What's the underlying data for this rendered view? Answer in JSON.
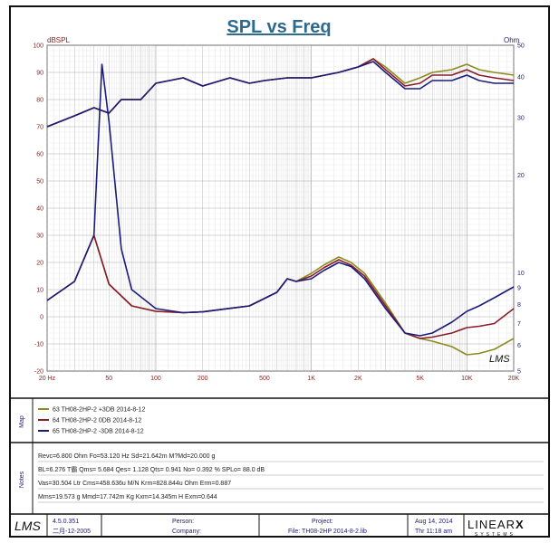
{
  "title": "SPL vs Freq",
  "chart_data": {
    "type": "line",
    "title": "SPL vs Freq",
    "x_axis": {
      "scale": "log",
      "range": [
        20,
        20000
      ],
      "tick_labels": [
        {
          "v": 20,
          "t": "20 Hz"
        },
        {
          "v": 50,
          "t": "50"
        },
        {
          "v": 100,
          "t": "100"
        },
        {
          "v": 200,
          "t": "200"
        },
        {
          "v": 500,
          "t": "500"
        },
        {
          "v": 1000,
          "t": "1K"
        },
        {
          "v": 2000,
          "t": "2K"
        },
        {
          "v": 5000,
          "t": "5K"
        },
        {
          "v": 10000,
          "t": "10K"
        },
        {
          "v": 20000,
          "t": "20K"
        }
      ]
    },
    "y_left": {
      "label": "dBSPL",
      "range": [
        -20,
        100
      ],
      "ticks": [
        -20,
        -10,
        0,
        10,
        20,
        30,
        40,
        50,
        60,
        70,
        80,
        90,
        100
      ]
    },
    "y_right": {
      "label": "Ohm",
      "scale": "log",
      "range": [
        5,
        50
      ],
      "ticks": [
        5,
        6,
        7,
        8,
        9,
        10,
        20,
        30,
        40,
        50
      ]
    },
    "grid": true,
    "series": [
      {
        "name": "63  TH08-2HP-2  +3DB   2014-8-12",
        "axis": "left",
        "color": "#8c8c1e",
        "points": [
          [
            20,
            6
          ],
          [
            30,
            13
          ],
          [
            40,
            30
          ],
          [
            50,
            12
          ],
          [
            70,
            4
          ],
          [
            100,
            2
          ],
          [
            150,
            1.5
          ],
          [
            200,
            1.8
          ],
          [
            400,
            4
          ],
          [
            600,
            9
          ],
          [
            700,
            14
          ],
          [
            800,
            13
          ],
          [
            1000,
            16
          ],
          [
            1200,
            19
          ],
          [
            1500,
            22
          ],
          [
            1800,
            20
          ],
          [
            2200,
            16
          ],
          [
            3000,
            5
          ],
          [
            4000,
            -6
          ],
          [
            5000,
            -8
          ],
          [
            6000,
            -9
          ],
          [
            8000,
            -11
          ],
          [
            10000,
            -14
          ],
          [
            12000,
            -13.5
          ],
          [
            15000,
            -12
          ],
          [
            20000,
            -8
          ]
        ]
      },
      {
        "name": "64  TH08-2HP-2   0DB   2014-8-12",
        "axis": "left",
        "color": "#8a1c2c",
        "points": [
          [
            20,
            6
          ],
          [
            30,
            13
          ],
          [
            40,
            30
          ],
          [
            50,
            12
          ],
          [
            70,
            4
          ],
          [
            100,
            2
          ],
          [
            150,
            1.5
          ],
          [
            200,
            1.8
          ],
          [
            400,
            4
          ],
          [
            600,
            9
          ],
          [
            700,
            14
          ],
          [
            800,
            13
          ],
          [
            1000,
            15
          ],
          [
            1200,
            18
          ],
          [
            1500,
            21
          ],
          [
            1800,
            19
          ],
          [
            2200,
            15
          ],
          [
            3000,
            4
          ],
          [
            4000,
            -6
          ],
          [
            5000,
            -8
          ],
          [
            6000,
            -7.5
          ],
          [
            8000,
            -6
          ],
          [
            10000,
            -4
          ],
          [
            12000,
            -3.5
          ],
          [
            15000,
            -2.5
          ],
          [
            20000,
            3
          ]
        ]
      },
      {
        "name": "65  TH08-2HP-2  -3DB   2014-8-12",
        "axis": "left",
        "color": "#1c1c7a",
        "points": [
          [
            20,
            6
          ],
          [
            30,
            13
          ],
          [
            40,
            30
          ],
          [
            45,
            93
          ],
          [
            50,
            72
          ],
          [
            60,
            25
          ],
          [
            70,
            10
          ],
          [
            100,
            3
          ],
          [
            150,
            1.5
          ],
          [
            200,
            1.8
          ],
          [
            400,
            4
          ],
          [
            600,
            9
          ],
          [
            700,
            14
          ],
          [
            800,
            13
          ],
          [
            1000,
            14
          ],
          [
            1200,
            17
          ],
          [
            1500,
            20
          ],
          [
            1800,
            18.5
          ],
          [
            2200,
            14
          ],
          [
            3000,
            3
          ],
          [
            4000,
            -6
          ],
          [
            5000,
            -7
          ],
          [
            6000,
            -6
          ],
          [
            8000,
            -2
          ],
          [
            10000,
            2
          ],
          [
            12000,
            4
          ],
          [
            15000,
            7
          ],
          [
            20000,
            11
          ]
        ]
      }
    ],
    "spl_top_series": [
      {
        "color": "#8c8c1e",
        "points": [
          [
            20,
            70
          ],
          [
            30,
            74
          ],
          [
            40,
            77
          ],
          [
            50,
            75
          ],
          [
            60,
            80
          ],
          [
            80,
            80
          ],
          [
            100,
            86
          ],
          [
            150,
            88
          ],
          [
            200,
            85
          ],
          [
            300,
            88
          ],
          [
            400,
            86
          ],
          [
            500,
            87
          ],
          [
            700,
            88
          ],
          [
            1000,
            88
          ],
          [
            1500,
            90
          ],
          [
            2000,
            92
          ],
          [
            2500,
            95
          ],
          [
            3000,
            92
          ],
          [
            4000,
            86
          ],
          [
            5000,
            88
          ],
          [
            6000,
            90
          ],
          [
            8000,
            91
          ],
          [
            10000,
            93
          ],
          [
            12000,
            91
          ],
          [
            15000,
            90
          ],
          [
            20000,
            89
          ]
        ]
      },
      {
        "color": "#8a1c2c",
        "points": [
          [
            20,
            70
          ],
          [
            30,
            74
          ],
          [
            40,
            77
          ],
          [
            50,
            75
          ],
          [
            60,
            80
          ],
          [
            80,
            80
          ],
          [
            100,
            86
          ],
          [
            150,
            88
          ],
          [
            200,
            85
          ],
          [
            300,
            88
          ],
          [
            400,
            86
          ],
          [
            500,
            87
          ],
          [
            700,
            88
          ],
          [
            1000,
            88
          ],
          [
            1500,
            90
          ],
          [
            2000,
            92
          ],
          [
            2500,
            95
          ],
          [
            3000,
            91
          ],
          [
            4000,
            85
          ],
          [
            5000,
            86
          ],
          [
            6000,
            89
          ],
          [
            8000,
            89
          ],
          [
            10000,
            91
          ],
          [
            12000,
            89
          ],
          [
            15000,
            88
          ],
          [
            20000,
            87
          ]
        ]
      },
      {
        "color": "#1c1c7a",
        "points": [
          [
            20,
            70
          ],
          [
            30,
            74
          ],
          [
            40,
            77
          ],
          [
            50,
            75
          ],
          [
            60,
            80
          ],
          [
            80,
            80
          ],
          [
            100,
            86
          ],
          [
            150,
            88
          ],
          [
            200,
            85
          ],
          [
            300,
            88
          ],
          [
            400,
            86
          ],
          [
            500,
            87
          ],
          [
            700,
            88
          ],
          [
            1000,
            88
          ],
          [
            1500,
            90
          ],
          [
            2000,
            92
          ],
          [
            2500,
            94
          ],
          [
            3000,
            90
          ],
          [
            4000,
            84
          ],
          [
            5000,
            84
          ],
          [
            6000,
            87
          ],
          [
            8000,
            87
          ],
          [
            10000,
            89
          ],
          [
            12000,
            87
          ],
          [
            15000,
            86
          ],
          [
            20000,
            86
          ]
        ]
      }
    ]
  },
  "map": {
    "tag": "Map",
    "entries": [
      {
        "label": "63  TH08-2HP-2  +3DB   2014-8-12",
        "color": "#8c8c1e"
      },
      {
        "label": "64  TH08-2HP-2   0DB   2014-8-12",
        "color": "#8a1c2c"
      },
      {
        "label": "65  TH08-2HP-2  -3DB   2014-8-12",
        "color": "#1c1c7a"
      }
    ]
  },
  "notes": {
    "tag": "Notes",
    "lines": [
      "Revc=6.800 Ohm  Fo=53.120 Hz  Sd=21.642m M?Md=20.000 g",
      "BL=6.276 T霸  Qms= 5.684  Qes= 1.128  Qts= 0.941  No= 0.392 %  SPLo= 88.0 dB",
      "Vas=30.504 Ltr  Cms=458.636u M/N  Krm=828.844u Ohm  Erm=0.887",
      "Mms=19.573 g  Mmd=17.742m Kg  Kxm=14.345m H  Exm=0.644"
    ]
  },
  "footer": {
    "logo": "LMS",
    "version": "4.5.0.351",
    "build_date": "二月-12-2005",
    "person_label": "Person:",
    "company_label": "Company:",
    "project_label": "Project:",
    "file_label": "File: TH08-2HP   2014-8-2.lib",
    "date": "Aug 14, 2014",
    "time": "Thr 11:18 am",
    "brand": "LINEAR",
    "brand_x": "X",
    "brand_sub": "SYSTEMS",
    "watermark": "LMS"
  }
}
